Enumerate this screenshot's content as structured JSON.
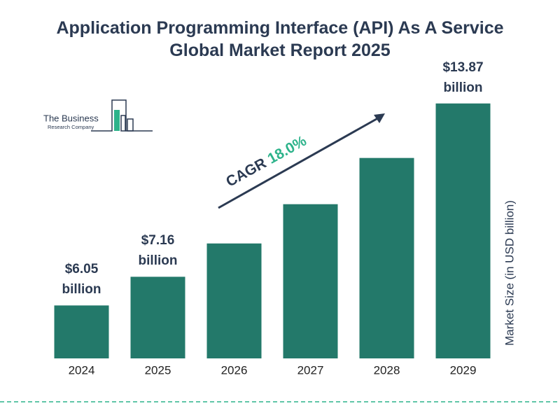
{
  "chart_data": {
    "type": "bar",
    "title": "Application Programming Interface (API) As A Service Global Market Report 2025",
    "y_label": "Market Size (in USD billion)",
    "logo": {
      "line1": "The Business",
      "line2": "Research Company"
    },
    "annotation": {
      "label": "CAGR",
      "value": "18.0%"
    },
    "categories": [
      "2024",
      "2025",
      "2026",
      "2027",
      "2028",
      "2029"
    ],
    "values": [
      6.05,
      7.16,
      8.45,
      9.97,
      11.76,
      13.87
    ],
    "value_labels": [
      "$6.05 billion",
      "$7.16 billion",
      null,
      null,
      null,
      "$13.87 billion"
    ],
    "color": "#23796a",
    "ylim": [
      4,
      14
    ]
  }
}
